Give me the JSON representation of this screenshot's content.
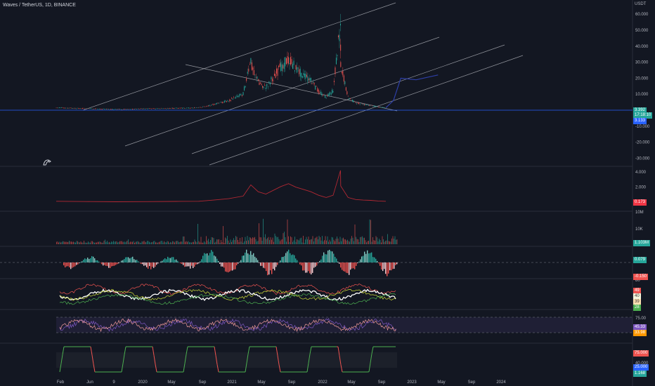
{
  "header": {
    "title": "Waves / TetherUS, 1D, BINANCE",
    "currency": "USDT"
  },
  "colors": {
    "bg": "#131722",
    "up": "#26a69a",
    "down": "#ef5350",
    "projection": "#2e3fa8",
    "hline": "#2962ff"
  },
  "chart_data": {
    "type": "line",
    "x_ticks": [
      "Feb",
      "Jun",
      "9",
      "2020",
      "May",
      "Sep",
      "2021",
      "May",
      "Sep",
      "2022",
      "May",
      "Sep",
      "2023",
      "May",
      "Sep",
      "2024"
    ],
    "price_axis": [
      "60.000",
      "50.000",
      "40.000",
      "30.000",
      "20.000",
      "10.000",
      "0.000",
      "-10.000",
      "-20.000",
      "-30.000"
    ],
    "price_series": {
      "x": [
        "2019-02",
        "2019-06",
        "2019-10",
        "2020-02",
        "2020-06",
        "2020-09",
        "2020-11",
        "2021-01",
        "2021-03",
        "2021-04",
        "2021-05",
        "2021-06",
        "2021-08",
        "2021-09",
        "2021-10",
        "2021-11",
        "2021-12",
        "2022-01",
        "2022-02",
        "2022-03",
        "2022-03-31",
        "2022-04",
        "2022-05",
        "2022-06",
        "2022-07",
        "2022-08",
        "2022-09",
        "2022-10"
      ],
      "close": [
        1.5,
        1.0,
        0.5,
        0.9,
        1.2,
        1.5,
        3.5,
        6.0,
        10.5,
        30.0,
        18.0,
        14.0,
        27.0,
        32.0,
        26.0,
        22.0,
        18.0,
        12.0,
        8.0,
        12.0,
        55.0,
        28.0,
        8.0,
        4.5,
        3.5,
        3.0,
        2.0,
        1.5
      ]
    },
    "projection": {
      "x": [
        "2022-10",
        "2022-11",
        "2022-12",
        "2023-02",
        "2023-05"
      ],
      "y": [
        1.5,
        6,
        20,
        19,
        22
      ]
    },
    "price_labels": [
      {
        "text": "3.392",
        "sub": "17:18:10",
        "color": "#26a69a"
      },
      {
        "text": "3.133",
        "color": "#2962ff"
      }
    ],
    "panels": [
      {
        "name": "ratio",
        "axis": [
          "4.000",
          "2.000"
        ],
        "value": "0.173",
        "value_color": "#f23645"
      },
      {
        "name": "volume",
        "axis": [
          "10M",
          "10K"
        ],
        "value": "1.103M",
        "value_color": "#26a69a"
      },
      {
        "name": "histogram",
        "axis": [],
        "values": [
          "0.079",
          "-0.150"
        ],
        "value_colors": [
          "#26a69a",
          "#ef5350"
        ]
      },
      {
        "name": "oscillator",
        "axis": [
          "80"
        ],
        "values": [
          "49",
          "40",
          "39",
          "28"
        ],
        "value_colors": [
          "#ef5350",
          "#f5f5dc",
          "#ffe0b2",
          "#4caf50"
        ]
      },
      {
        "name": "rsi",
        "axis": [
          "75.00"
        ],
        "values": [
          "45.33",
          "33.98"
        ],
        "value_colors": [
          "#7e57c2",
          "#ff9800"
        ]
      },
      {
        "name": "stoch",
        "axis": [
          "40.000"
        ],
        "values": [
          "75.000",
          "25.000",
          "1.168"
        ],
        "value_colors": [
          "#ef5350",
          "#2962ff",
          "#26a69a"
        ]
      }
    ]
  }
}
